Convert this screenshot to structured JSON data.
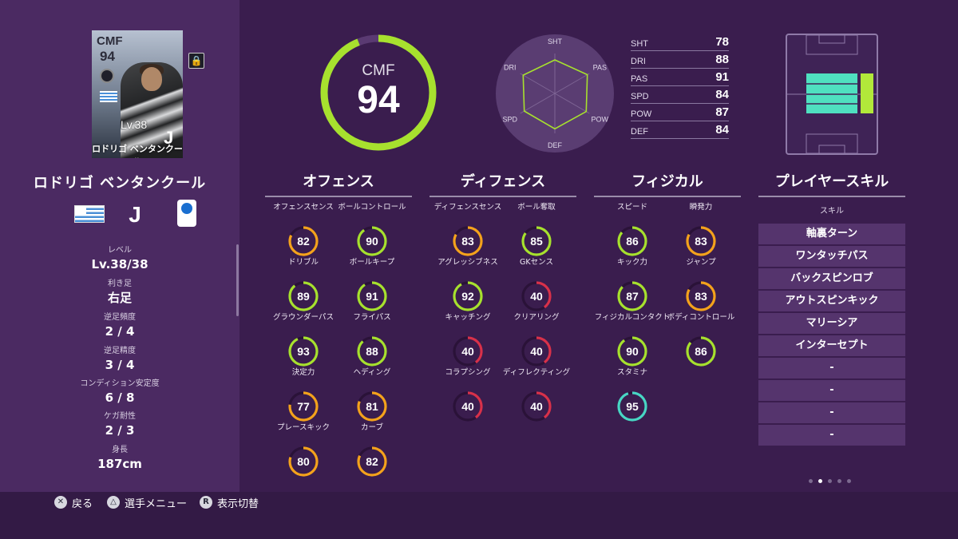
{
  "player": {
    "name": "ロドリゴ ベンタンクール",
    "card_name": "ロドリゴ ベンタンクール",
    "position": "CMF",
    "overall": "94",
    "card_level": "Lv.38",
    "club_mark": "J",
    "info": [
      {
        "key": "レベル",
        "value": "Lv.38/38"
      },
      {
        "key": "利き足",
        "value": "右足"
      },
      {
        "key": "逆足頻度",
        "value": "2 / 4"
      },
      {
        "key": "逆足精度",
        "value": "3 / 4"
      },
      {
        "key": "コンディション安定度",
        "value": "6 / 8"
      },
      {
        "key": "ケガ耐性",
        "value": "2 / 3"
      },
      {
        "key": "身長",
        "value": "187cm"
      }
    ]
  },
  "overall_ring": {
    "position": "CMF",
    "value": "94",
    "fill": 0.94
  },
  "radar": {
    "labels": [
      "SHT",
      "PAS",
      "POW",
      "DEF",
      "SPD",
      "DRI"
    ],
    "values": [
      78,
      91,
      87,
      84,
      84,
      88
    ]
  },
  "stat_table": [
    {
      "name": "SHT",
      "value": "78"
    },
    {
      "name": "DRI",
      "value": "88"
    },
    {
      "name": "PAS",
      "value": "91"
    },
    {
      "name": "SPD",
      "value": "84"
    },
    {
      "name": "POW",
      "value": "87"
    },
    {
      "name": "DEF",
      "value": "84"
    }
  ],
  "categories": {
    "offense": "オフェンス",
    "defense": "ディフェンス",
    "physical": "フィジカル",
    "skills": "プレイヤースキル"
  },
  "offense": [
    {
      "label": "オフェンスセンス",
      "value": 82
    },
    {
      "label": "ボールコントロール",
      "value": 90
    },
    {
      "label": "ドリブル",
      "value": 89
    },
    {
      "label": "ボールキープ",
      "value": 91
    },
    {
      "label": "グラウンダーパス",
      "value": 93
    },
    {
      "label": "フライパス",
      "value": 88
    },
    {
      "label": "決定力",
      "value": 77
    },
    {
      "label": "ヘディング",
      "value": 81
    },
    {
      "label": "プレースキック",
      "value": 80
    },
    {
      "label": "カーブ",
      "value": 82
    }
  ],
  "defense": [
    {
      "label": "ディフェンスセンス",
      "value": 83
    },
    {
      "label": "ボール奪取",
      "value": 85
    },
    {
      "label": "アグレッシブネス",
      "value": 92
    },
    {
      "label": "GKセンス",
      "value": 40
    },
    {
      "label": "キャッチング",
      "value": 40
    },
    {
      "label": "クリアリング",
      "value": 40
    },
    {
      "label": "コラプシング",
      "value": 40
    },
    {
      "label": "ディフレクティング",
      "value": 40
    }
  ],
  "physical": [
    {
      "label": "スピード",
      "value": 86
    },
    {
      "label": "瞬発力",
      "value": 83
    },
    {
      "label": "キック力",
      "value": 87
    },
    {
      "label": "ジャンプ",
      "value": 83
    },
    {
      "label": "フィジカルコンタクト",
      "value": 90
    },
    {
      "label": "ボディコントロール",
      "value": 86
    },
    {
      "label": "スタミナ",
      "value": 95
    }
  ],
  "skills_header": "スキル",
  "skills": [
    "軸裏ターン",
    "ワンタッチパス",
    "バックスピンロブ",
    "アウトスピンキック",
    "マリーシア",
    "インターセプト",
    "-",
    "-",
    "-",
    "-"
  ],
  "controls": [
    {
      "icon": "✕",
      "label": "戻る"
    },
    {
      "icon": "△",
      "label": "選手メニュー"
    },
    {
      "icon": "R",
      "label": "表示切替"
    }
  ],
  "page_dots": {
    "total": 5,
    "active": 1
  },
  "colors": {
    "bg": "#3a1d4e",
    "panel": "#4b2a62",
    "ring_green": "#a7e12e",
    "ring_orange": "#f4a21c",
    "ring_red": "#d8314a",
    "ring_teal": "#48d6c4",
    "pitch_zone": "#4fe0c0",
    "pitch_zone_alt": "#b2e83a"
  }
}
